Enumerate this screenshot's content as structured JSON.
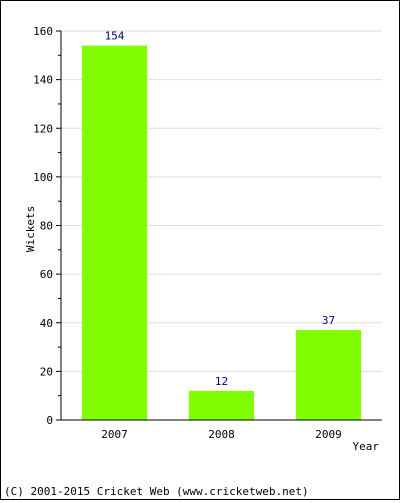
{
  "chart_data": {
    "type": "bar",
    "categories": [
      "2007",
      "2008",
      "2009"
    ],
    "values": [
      154,
      12,
      37
    ],
    "data_labels": [
      "154",
      "12",
      "37"
    ],
    "xlabel": "Year",
    "ylabel": "Wickets",
    "ylim": [
      0,
      160
    ],
    "yticks": [
      0,
      20,
      40,
      60,
      80,
      100,
      120,
      140,
      160
    ],
    "grid": true,
    "legend": "none",
    "bar_color": "#80ff00",
    "label_color": "#000080"
  },
  "footer": {
    "copyright": "(C) 2001-2015 Cricket Web (www.cricketweb.net)"
  }
}
